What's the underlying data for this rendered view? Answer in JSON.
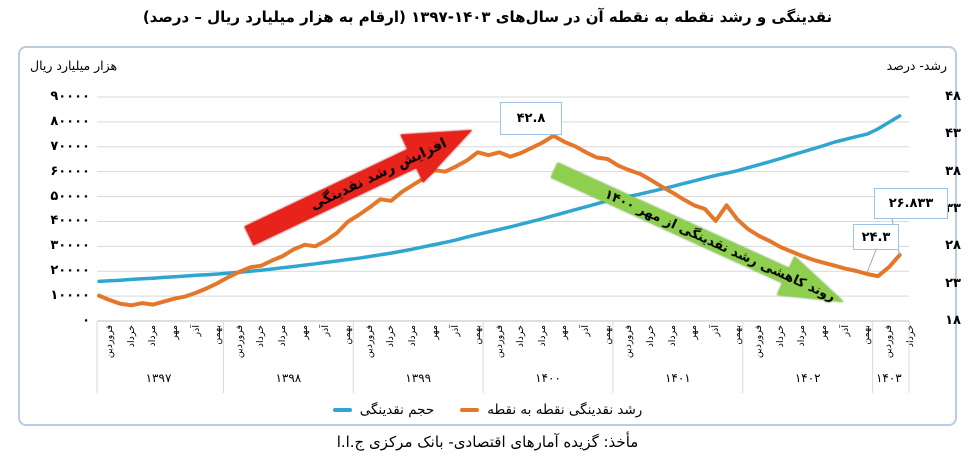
{
  "title": "نقدینگی و رشد نقطه به نقطه آن در سال‌های ۱۴۰۳-۱۳۹۷ (ارقام به هزار میلیارد ریال – درصد)",
  "source": "مأخذ: گزیده آمارهای اقتصادی- بانک مرکزی ج.ا.ا",
  "legend": {
    "growth_label": "رشد نقدینگی نقطه به نقطه",
    "volume_label": "حجم نقدینگی"
  },
  "chart_data": {
    "type": "line",
    "title": "نقدینگی و رشد نقطه به نقطه آن در سال‌های ۱۴۰۳-۱۳۹۷",
    "x_unit": "month",
    "x_start": "فروردین ۱۳۹۷",
    "x_end": "خرداد ۱۴۰۳",
    "grid": true,
    "legend_position": "bottom",
    "left_axis": {
      "title": "هزار میلیارد ریال",
      "min": 0,
      "max": 90000,
      "step": 10000,
      "tick_labels": [
        "۹۰۰۰۰",
        "۸۰۰۰۰",
        "۷۰۰۰۰",
        "۶۰۰۰۰",
        "۵۰۰۰۰",
        "۴۰۰۰۰",
        "۳۰۰۰۰",
        "۲۰۰۰۰",
        "۱۰۰۰۰",
        "۰"
      ]
    },
    "right_axis": {
      "title": "رشد- درصد",
      "min": 18,
      "max": 48,
      "step": 5,
      "tick_labels": [
        "۴۸",
        "۴۳",
        "۳۸",
        "۳۳",
        "۲۸",
        "۲۳",
        "۱۸"
      ]
    },
    "x_axis": {
      "tick_month_offsets": [
        0,
        2,
        4,
        6,
        8,
        10
      ],
      "months_fa": [
        "فروردین",
        "خرداد",
        "مرداد",
        "مهر",
        "آذر",
        "بهمن"
      ],
      "last_year_months_fa": [
        "فروردین",
        "خرداد"
      ],
      "years": [
        "۱۳۹۷",
        "۱۳۹۸",
        "۱۳۹۹",
        "۱۴۰۰",
        "۱۴۰۱",
        "۱۴۰۲",
        "۱۴۰۳"
      ]
    },
    "series": [
      {
        "name": "رشد نقدینگی نقطه به نقطه",
        "axis": "right",
        "unit": "درصد",
        "color": "#E5772B",
        "values": [
          21.4,
          20.8,
          20.3,
          20.1,
          20.4,
          20.2,
          20.6,
          21.0,
          21.3,
          21.8,
          22.4,
          23.1,
          23.9,
          24.6,
          25.2,
          25.4,
          26.1,
          26.7,
          27.6,
          28.2,
          28.0,
          28.8,
          29.8,
          31.3,
          32.2,
          33.2,
          34.3,
          34.1,
          35.3,
          36.2,
          37.1,
          38.2,
          38.0,
          38.7,
          39.5,
          40.6,
          40.2,
          40.6,
          40.0,
          40.5,
          41.2,
          41.9,
          42.8,
          42.0,
          41.4,
          40.6,
          39.9,
          39.7,
          38.8,
          38.2,
          37.7,
          36.9,
          36.0,
          35.2,
          34.3,
          33.5,
          33.0,
          31.4,
          33.5,
          31.6,
          30.3,
          29.4,
          28.7,
          27.9,
          27.3,
          26.7,
          26.2,
          25.8,
          25.4,
          25.0,
          24.7,
          24.3,
          24.0,
          25.2,
          26.833
        ]
      },
      {
        "name": "حجم نقدینگی",
        "axis": "left",
        "unit": "هزار میلیارد ریال",
        "color": "#2FA6CF",
        "values": [
          15900,
          16150,
          16400,
          16700,
          16950,
          17200,
          17500,
          17800,
          18100,
          18350,
          18600,
          18900,
          19250,
          19600,
          20000,
          20400,
          20900,
          21400,
          21900,
          22450,
          23000,
          23550,
          24100,
          24700,
          25250,
          25900,
          26600,
          27300,
          28100,
          28900,
          29800,
          30700,
          31600,
          32600,
          33700,
          34800,
          35800,
          36800,
          37800,
          38900,
          40000,
          41100,
          42300,
          43500,
          44700,
          45900,
          47100,
          48300,
          49200,
          50100,
          51000,
          52000,
          53000,
          54100,
          55200,
          56300,
          57400,
          58500,
          59400,
          60400,
          61600,
          62800,
          64000,
          65300,
          66600,
          67900,
          69200,
          70500,
          71900,
          73000,
          74100,
          75100,
          77200,
          79800,
          82400
        ]
      }
    ],
    "annotations": [
      {
        "text": "۴۲.۸",
        "value": 42.8,
        "month_index": 42,
        "at": "مهر ۱۴۰۰"
      },
      {
        "text": "۲۶.۸۳۳",
        "value": 26.833,
        "month_index": 74,
        "at": "خرداد ۱۴۰۳"
      },
      {
        "text": "۲۴.۳",
        "value": 24.3,
        "month_index": 71,
        "at": "اسفند ۱۴۰۲"
      }
    ],
    "arrows": [
      {
        "text": "افزایش رشد نقدینگی",
        "direction": "up",
        "color": "#E8231C"
      },
      {
        "text": "روند کاهشی رشد نقدینگی از مهر ۱۴۰۰",
        "direction": "down",
        "color": "#8FCF50"
      }
    ],
    "colors": {
      "gridline": "#D9D9D9",
      "axis_line": "#BFBFBF",
      "callout_border": "#9DC3E6",
      "leader_line": "#A6A6A6",
      "frame_border": "#B9CDE5"
    }
  }
}
